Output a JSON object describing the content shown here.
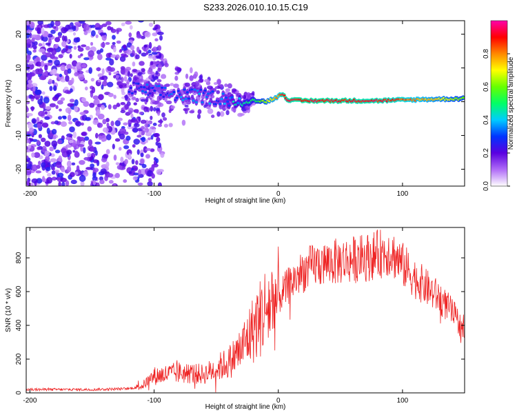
{
  "title": "S233.2026.010.10.15.C19",
  "chart_data": [
    {
      "type": "heatmap",
      "xlabel": "Height of straight line (km)",
      "ylabel": "Frequency (Hz)",
      "xlim": [
        -203,
        150
      ],
      "ylim": [
        -25,
        24
      ],
      "xticks": [
        -200,
        -100,
        0,
        100
      ],
      "yticks": [
        -20,
        -10,
        0,
        10,
        20
      ],
      "colorbar": {
        "label": "Normalized spectral amplitude",
        "range": [
          0,
          1
        ],
        "ticks": [
          0.0,
          0.2,
          0.4,
          0.6,
          0.8
        ],
        "colors": [
          "#ffffff",
          "#b06cf7",
          "#5a00e0",
          "#0033ff",
          "#00ccff",
          "#00ff66",
          "#66ff00",
          "#ffff00",
          "#ff8800",
          "#ff0000",
          "#ff00aa"
        ]
      },
      "ridge": {
        "x": [
          -120,
          -110,
          -100,
          -90,
          -80,
          -70,
          -60,
          -50,
          -40,
          -30,
          -20,
          -10,
          0,
          3,
          8,
          20,
          40,
          60,
          80,
          100,
          120,
          150
        ],
        "frequency": [
          4,
          3.5,
          3,
          2.5,
          2,
          1.8,
          1.5,
          1.2,
          0.8,
          -1,
          0.5,
          0,
          1.5,
          2.5,
          0.5,
          0.3,
          0.3,
          0.3,
          0.3,
          0.5,
          0.7,
          0.9
        ],
        "amplitude": [
          0.25,
          0.3,
          0.3,
          0.3,
          0.32,
          0.33,
          0.34,
          0.3,
          0.35,
          0.45,
          0.5,
          0.65,
          0.8,
          0.9,
          0.9,
          0.92,
          0.92,
          0.9,
          0.9,
          0.85,
          0.75,
          0.6
        ]
      }
    },
    {
      "type": "line",
      "xlabel": "Height of straight line (km)",
      "ylabel": "SNR (10 * v/v)",
      "xlim": [
        -203,
        150
      ],
      "ylim": [
        0,
        980
      ],
      "xticks": [
        -200,
        -100,
        0,
        100
      ],
      "yticks": [
        0,
        200,
        400,
        600,
        800
      ],
      "color": "#ee2222",
      "envelope": {
        "x": [
          -203,
          -150,
          -120,
          -110,
          -100,
          -80,
          -60,
          -40,
          -30,
          -20,
          -10,
          0,
          10,
          20,
          30,
          50,
          70,
          90,
          100,
          110,
          120,
          130,
          140,
          150
        ],
        "snr": [
          20,
          20,
          25,
          40,
          100,
          120,
          110,
          180,
          260,
          380,
          500,
          560,
          650,
          720,
          760,
          780,
          800,
          840,
          760,
          680,
          620,
          560,
          480,
          360
        ]
      }
    }
  ]
}
